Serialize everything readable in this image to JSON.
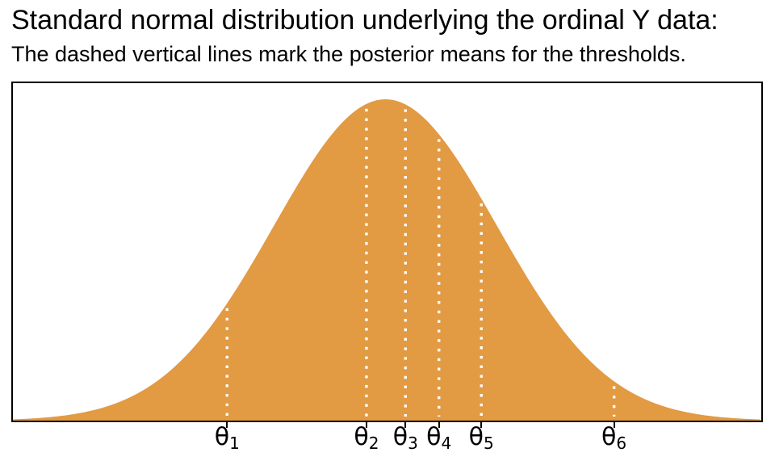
{
  "header": {
    "title": "Standard normal distribution underlying the ordinal Y data:",
    "subtitle": "The dashed vertical lines mark the posterior means for the thresholds."
  },
  "chart_data": {
    "type": "area",
    "title": "Standard normal distribution underlying the ordinal Y data:",
    "subtitle": "The dashed vertical lines mark the posterior means for the thresholds.",
    "distribution": "standard normal",
    "mean": 0,
    "sd": 1,
    "peak_density": 0.3989,
    "x_range": [
      -3.34,
      3.37
    ],
    "ylim": [
      0,
      0.419
    ],
    "grid": false,
    "legend": false,
    "xlabel": "",
    "ylabel": "",
    "fill_color": "#E29A43",
    "threshold_line_color": "#FFFFFF",
    "threshold_line_style": "dotted",
    "axis_color": "#000000",
    "thresholds": [
      {
        "name": "theta_1",
        "base": "θ",
        "sub": "1",
        "value": -1.42
      },
      {
        "name": "theta_2",
        "base": "θ",
        "sub": "2",
        "value": -0.17
      },
      {
        "name": "theta_3",
        "base": "θ",
        "sub": "3",
        "value": 0.18
      },
      {
        "name": "theta_4",
        "base": "θ",
        "sub": "4",
        "value": 0.48
      },
      {
        "name": "theta_5",
        "base": "θ",
        "sub": "5",
        "value": 0.86
      },
      {
        "name": "theta_6",
        "base": "θ",
        "sub": "6",
        "value": 2.05
      }
    ]
  }
}
